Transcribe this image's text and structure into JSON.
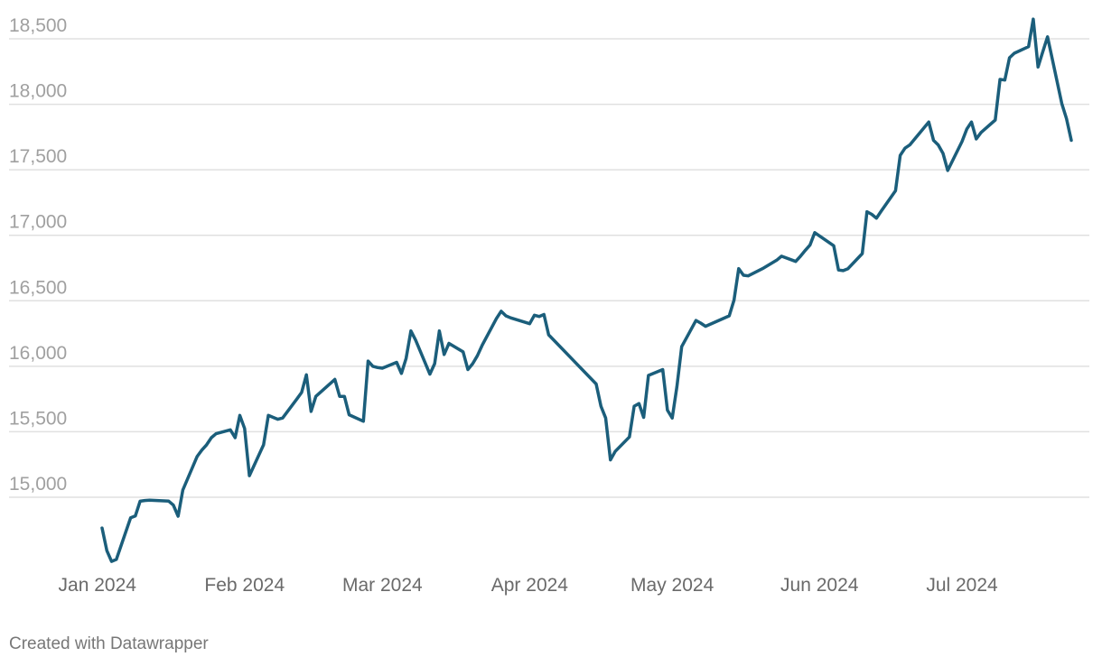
{
  "credit": "Created with Datawrapper",
  "colors": {
    "line": "#1b5e7b",
    "grid": "#e0e0e0",
    "tick_text": "#a0a0a0",
    "month_text": "#6a6a6a"
  },
  "chart_data": {
    "type": "line",
    "title": "",
    "xlabel": "",
    "ylabel": "",
    "ylim": [
      14450,
      18700
    ],
    "xlim": [
      "2024-01-02",
      "2024-07-24"
    ],
    "grid": true,
    "y_ticks": [
      15000,
      15500,
      16000,
      16500,
      17000,
      17500,
      18000,
      18500
    ],
    "y_tick_labels": [
      "15,000",
      "15,500",
      "16,000",
      "16,500",
      "17,000",
      "17,500",
      "18,000",
      "18,500"
    ],
    "x_ticks": [
      "2024-01-01",
      "2024-02-01",
      "2024-03-01",
      "2024-04-01",
      "2024-05-01",
      "2024-06-01",
      "2024-07-01"
    ],
    "x_tick_labels": [
      "Jan 2024",
      "Feb 2024",
      "Mar 2024",
      "Apr 2024",
      "May 2024",
      "Jun 2024",
      "Jul 2024"
    ],
    "series": [
      {
        "x": [
          "2024-01-02",
          "2024-01-03",
          "2024-01-04",
          "2024-01-05",
          "2024-01-08",
          "2024-01-09",
          "2024-01-10",
          "2024-01-11",
          "2024-01-12",
          "2024-01-16",
          "2024-01-17",
          "2024-01-18",
          "2024-01-19",
          "2024-01-22",
          "2024-01-23",
          "2024-01-24",
          "2024-01-25",
          "2024-01-26",
          "2024-01-29",
          "2024-01-30",
          "2024-01-31",
          "2024-02-01",
          "2024-02-02",
          "2024-02-05",
          "2024-02-06",
          "2024-02-07",
          "2024-02-08",
          "2024-02-09",
          "2024-02-12",
          "2024-02-13",
          "2024-02-14",
          "2024-02-15",
          "2024-02-16",
          "2024-02-20",
          "2024-02-21",
          "2024-02-22",
          "2024-02-23",
          "2024-02-26",
          "2024-02-27",
          "2024-02-28",
          "2024-02-29",
          "2024-03-01",
          "2024-03-04",
          "2024-03-05",
          "2024-03-06",
          "2024-03-07",
          "2024-03-08",
          "2024-03-11",
          "2024-03-12",
          "2024-03-13",
          "2024-03-14",
          "2024-03-15",
          "2024-03-18",
          "2024-03-19",
          "2024-03-20",
          "2024-03-21",
          "2024-03-22",
          "2024-03-25",
          "2024-03-26",
          "2024-03-27",
          "2024-03-28",
          "2024-04-01",
          "2024-04-02",
          "2024-04-03",
          "2024-04-04",
          "2024-04-05",
          "2024-04-15",
          "2024-04-16",
          "2024-04-17",
          "2024-04-18",
          "2024-04-19",
          "2024-04-22",
          "2024-04-23",
          "2024-04-24",
          "2024-04-25",
          "2024-04-26",
          "2024-04-29",
          "2024-04-30",
          "2024-05-01",
          "2024-05-02",
          "2024-05-03",
          "2024-05-06",
          "2024-05-07",
          "2024-05-08",
          "2024-05-13",
          "2024-05-14",
          "2024-05-15",
          "2024-05-16",
          "2024-05-17",
          "2024-05-20",
          "2024-05-23",
          "2024-05-24",
          "2024-05-27",
          "2024-05-28",
          "2024-05-29",
          "2024-05-30",
          "2024-05-31",
          "2024-06-04",
          "2024-06-05",
          "2024-06-06",
          "2024-06-07",
          "2024-06-10",
          "2024-06-11",
          "2024-06-12",
          "2024-06-13",
          "2024-06-14",
          "2024-06-17",
          "2024-06-18",
          "2024-06-19",
          "2024-06-20",
          "2024-06-24",
          "2024-06-25",
          "2024-06-26",
          "2024-06-27",
          "2024-06-28",
          "2024-07-01",
          "2024-07-02",
          "2024-07-03",
          "2024-07-04",
          "2024-07-05",
          "2024-07-08",
          "2024-07-09",
          "2024-07-10",
          "2024-07-11",
          "2024-07-12",
          "2024-07-15",
          "2024-07-16",
          "2024-07-17",
          "2024-07-18",
          "2024-07-19",
          "2024-07-22",
          "2024-07-23",
          "2024-07-24"
        ],
        "values": [
          14765,
          14592,
          14510,
          14525,
          14843,
          14857,
          14970,
          14975,
          14977,
          14971,
          14940,
          14855,
          15055,
          15311,
          15360,
          15400,
          15455,
          15485,
          15515,
          15455,
          15625,
          15525,
          15165,
          15400,
          15625,
          15610,
          15595,
          15605,
          15750,
          15800,
          15935,
          15655,
          15770,
          15900,
          15770,
          15770,
          15630,
          15580,
          16040,
          16000,
          15990,
          15985,
          16030,
          15945,
          16060,
          16270,
          16200,
          15940,
          16020,
          16270,
          16090,
          16175,
          16110,
          15975,
          16020,
          16080,
          16160,
          16365,
          16420,
          16385,
          16370,
          16325,
          16390,
          16380,
          16395,
          16240,
          15865,
          15695,
          15605,
          15285,
          15350,
          15460,
          15695,
          15715,
          15610,
          15930,
          15975,
          15665,
          15605,
          15845,
          16150,
          16350,
          16330,
          16305,
          16385,
          16505,
          16745,
          16695,
          16690,
          16745,
          16810,
          16840,
          16800,
          16840,
          16885,
          16925,
          17020,
          16920,
          16735,
          16730,
          16745,
          16860,
          17180,
          17160,
          17130,
          17185,
          17340,
          17610,
          17665,
          17690,
          17865,
          17725,
          17690,
          17625,
          17495,
          17715,
          17810,
          17865,
          17735,
          17785,
          17880,
          18190,
          18185,
          18355,
          18390,
          18440,
          18650,
          18285,
          18400,
          18515,
          18005,
          17890,
          17725
        ]
      }
    ]
  }
}
